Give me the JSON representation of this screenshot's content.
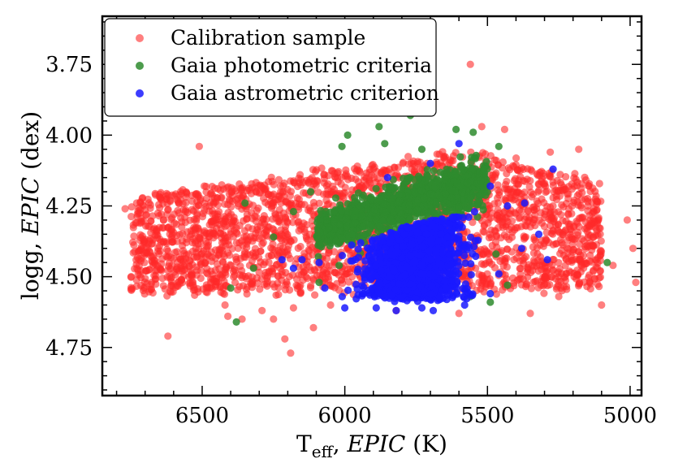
{
  "chart_data": {
    "type": "scatter",
    "xlabel": {
      "base": "T",
      "sub": "eff",
      "sep": ", ",
      "italic": "EPIC",
      "tail": " (K)"
    },
    "ylabel": {
      "base": "logg, ",
      "italic": "EPIC",
      "tail": " (dex)"
    },
    "xlim": [
      6850,
      4960
    ],
    "ylim": [
      4.92,
      3.58
    ],
    "x_inverted": true,
    "y_inverted": true,
    "xticks": [
      6500,
      6000,
      5500,
      5000
    ],
    "xtick_labels": [
      "6500",
      "6000",
      "5500",
      "5000"
    ],
    "yticks": [
      3.75,
      4.0,
      4.25,
      4.5,
      4.75
    ],
    "ytick_labels": [
      "3.75",
      "4.00",
      "4.25",
      "4.50",
      "4.75"
    ],
    "grid": false,
    "legend_position": "top-left",
    "series": [
      {
        "name": "Calibration sample",
        "color": "#ff2a2a",
        "opacity": 0.6,
        "core_region": {
          "teff_range": [
            6750,
            5100
          ],
          "logg_upper_hot": [
            4.22,
            4.56
          ],
          "logg_upper_cool": [
            4.05,
            4.55
          ]
        },
        "scatter_points": [
          [
            6510,
            4.04
          ],
          [
            6420,
            4.6
          ],
          [
            6360,
            4.65
          ],
          [
            6290,
            4.62
          ],
          [
            6250,
            4.65
          ],
          [
            6210,
            4.72
          ],
          [
            6410,
            4.64
          ],
          [
            6620,
            4.71
          ],
          [
            6180,
            4.61
          ],
          [
            6110,
            4.68
          ],
          [
            6050,
            4.6
          ],
          [
            5820,
            4.62
          ],
          [
            5560,
            3.75
          ],
          [
            5520,
            3.97
          ],
          [
            5440,
            3.98
          ],
          [
            5280,
            4.06
          ],
          [
            5180,
            4.05
          ],
          [
            5010,
            4.3
          ],
          [
            4990,
            4.4
          ],
          [
            4980,
            4.52
          ],
          [
            5100,
            4.6
          ],
          [
            5250,
            4.57
          ],
          [
            5350,
            4.63
          ],
          [
            5600,
            4.63
          ],
          [
            6770,
            4.26
          ],
          [
            6730,
            4.31
          ],
          [
            6190,
            4.77
          ],
          [
            5590,
            4.4
          ],
          [
            5150,
            4.34
          ],
          [
            5060,
            4.46
          ]
        ]
      },
      {
        "name": "Gaia photometric criteria",
        "color": "#2e8b2e",
        "opacity": 0.85,
        "core_region": {
          "teff_range": [
            6100,
            5500
          ],
          "logg_range": [
            4.05,
            4.45
          ]
        },
        "scatter_points": [
          [
            5770,
            3.93
          ],
          [
            5880,
            3.97
          ],
          [
            5990,
            4.0
          ],
          [
            6010,
            4.04
          ],
          [
            5860,
            4.03
          ],
          [
            5730,
            4.05
          ],
          [
            5610,
            3.98
          ],
          [
            5550,
            3.99
          ],
          [
            5460,
            4.04
          ],
          [
            6120,
            4.2
          ],
          [
            6180,
            4.27
          ],
          [
            6250,
            4.36
          ],
          [
            6350,
            4.24
          ],
          [
            6320,
            4.47
          ],
          [
            6400,
            4.54
          ],
          [
            6380,
            4.66
          ],
          [
            6020,
            4.46
          ],
          [
            6090,
            4.52
          ],
          [
            5470,
            4.42
          ],
          [
            5430,
            4.53
          ],
          [
            5490,
            4.59
          ],
          [
            5560,
            4.57
          ],
          [
            5080,
            4.45
          ]
        ]
      },
      {
        "name": "Gaia astrometric criterion",
        "color": "#1a1aff",
        "opacity": 0.85,
        "core_region": {
          "teff_range": [
            6050,
            5450
          ],
          "logg_range": [
            4.18,
            4.6
          ]
        },
        "scatter_points": [
          [
            5600,
            4.03
          ],
          [
            5700,
            4.1
          ],
          [
            5850,
            4.15
          ],
          [
            5490,
            4.18
          ],
          [
            5430,
            4.25
          ],
          [
            5370,
            4.24
          ],
          [
            5270,
            4.12
          ],
          [
            5380,
            4.4
          ],
          [
            5290,
            4.44
          ],
          [
            5320,
            4.35
          ],
          [
            6220,
            4.44
          ],
          [
            6180,
            4.47
          ],
          [
            6150,
            4.44
          ],
          [
            6090,
            4.45
          ],
          [
            6070,
            4.54
          ],
          [
            6000,
            4.61
          ],
          [
            5890,
            4.61
          ],
          [
            5820,
            4.62
          ],
          [
            5730,
            4.61
          ],
          [
            5690,
            4.62
          ],
          [
            5580,
            4.6
          ],
          [
            5490,
            4.56
          ],
          [
            5460,
            4.49
          ]
        ]
      }
    ]
  }
}
